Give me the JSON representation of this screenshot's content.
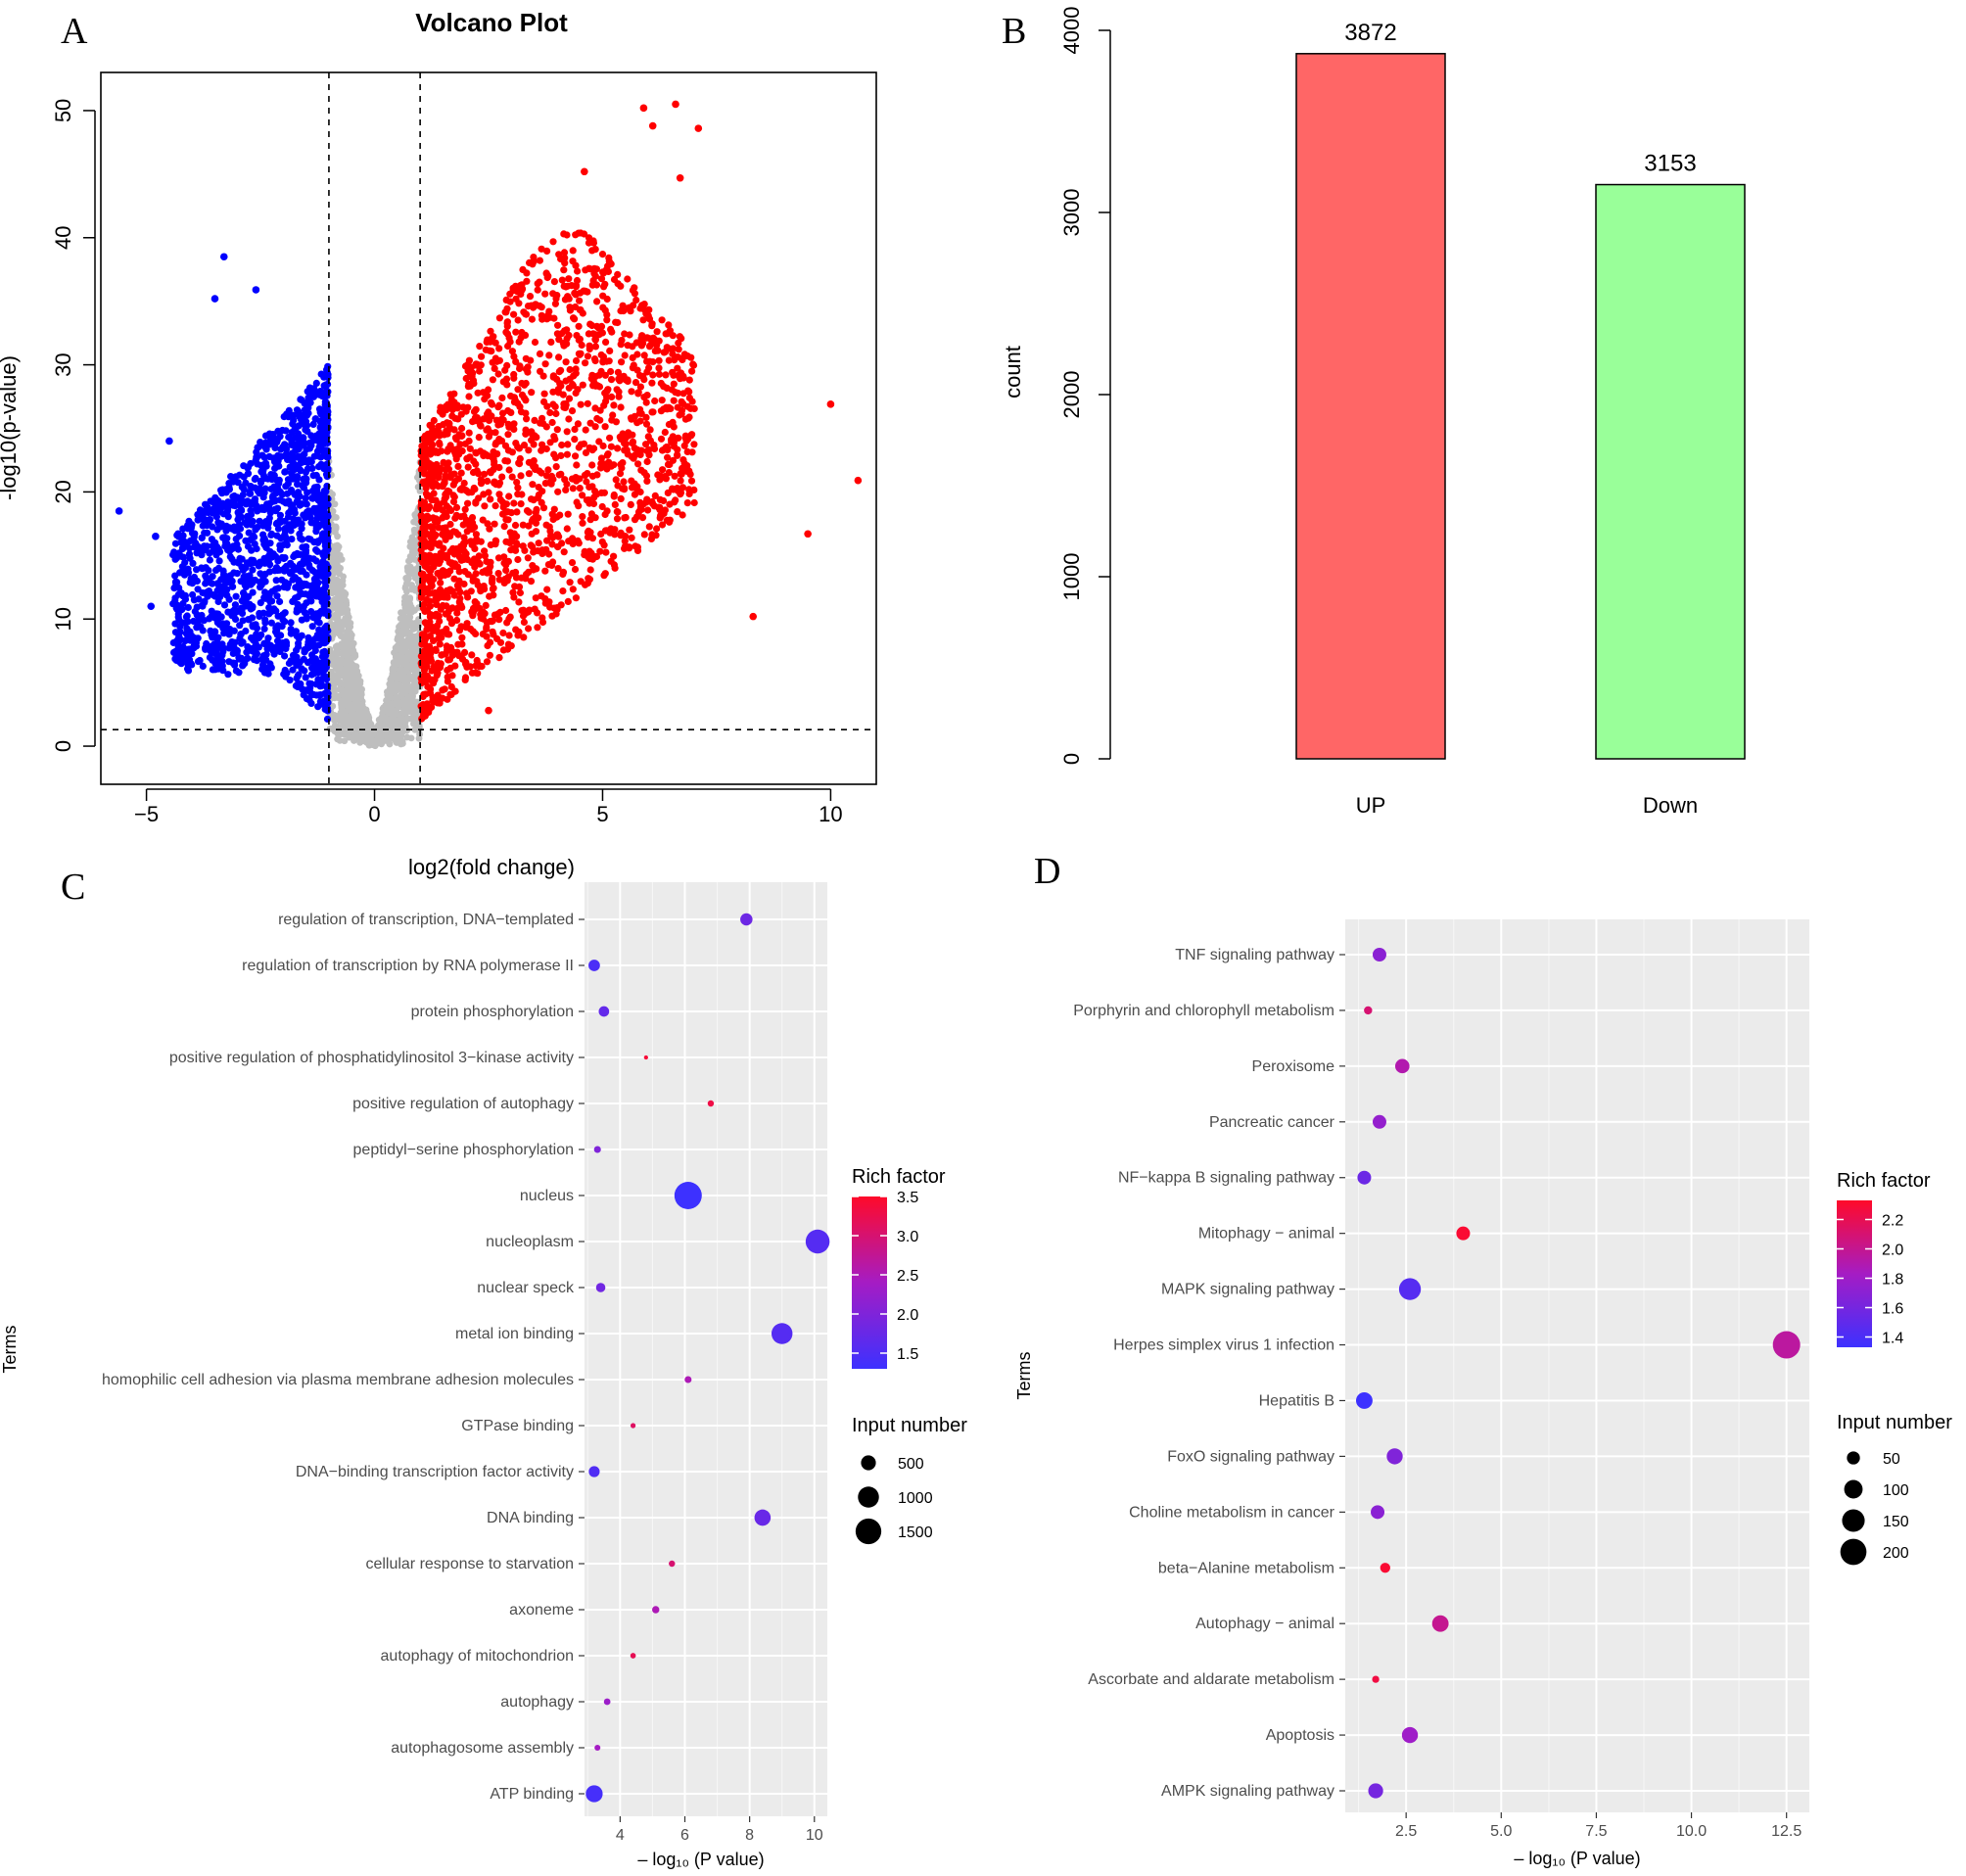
{
  "chart_data": [
    {
      "panel": "A",
      "type": "scatter",
      "title": "Volcano Plot",
      "xlabel": "log2(fold change)",
      "ylabel": "-log10(p-value)",
      "xlim": [
        -6,
        11
      ],
      "ylim": [
        -3,
        53
      ],
      "x_ticks": [
        -5,
        0,
        5,
        10
      ],
      "y_ticks": [
        0,
        10,
        20,
        30,
        40,
        50
      ],
      "thresholds": {
        "log2fc": [
          -1,
          1
        ],
        "neglog10p": 1.3
      },
      "colors": {
        "down": "#0000ff",
        "ns": "#bebebe",
        "up": "#ff0000"
      },
      "highlight_points": {
        "up": [
          [
            6.6,
            50.5
          ],
          [
            5.9,
            50.2
          ],
          [
            6.1,
            48.8
          ],
          [
            7.1,
            48.6
          ],
          [
            4.6,
            45.2
          ],
          [
            6.7,
            44.7
          ],
          [
            10.0,
            26.9
          ],
          [
            10.6,
            20.9
          ],
          [
            9.5,
            16.7
          ],
          [
            8.3,
            10.2
          ],
          [
            2.5,
            2.8
          ]
        ],
        "down": [
          [
            -5.6,
            18.5
          ],
          [
            -3.3,
            38.5
          ],
          [
            -2.6,
            35.9
          ],
          [
            -3.5,
            35.2
          ],
          [
            -4.5,
            24.0
          ],
          [
            -4.8,
            16.5
          ],
          [
            -4.9,
            11.0
          ],
          [
            -3.5,
            9.0
          ]
        ]
      }
    },
    {
      "panel": "B",
      "type": "bar",
      "categories": [
        "UP",
        "Down"
      ],
      "values": [
        3872,
        3153
      ],
      "data_labels": [
        "3872",
        "3153"
      ],
      "colors": [
        "#ff6666",
        "#99ff99"
      ],
      "title": "",
      "xlabel": "",
      "ylabel": "count",
      "ylim": [
        0,
        4000
      ],
      "y_ticks": [
        "0",
        "1000",
        "2000",
        "3000",
        "4000"
      ]
    },
    {
      "panel": "C",
      "type": "scatter",
      "title": "",
      "xlabel": "– log₁₀ (P value)",
      "ylabel": "Terms",
      "xlim": [
        2.9,
        10.4
      ],
      "x_ticks": [
        "4",
        "6",
        "8",
        "10"
      ],
      "legend": {
        "color_title": "Rich factor",
        "color_ticks": [
          "3.5",
          "3.0",
          "2.5",
          "2.0",
          "1.5"
        ],
        "color_range": [
          1.3,
          3.5
        ],
        "size_title": "Input number",
        "size_ticks": [
          "500",
          "1000",
          "1500"
        ]
      },
      "terms": [
        {
          "term": "regulation of transcription, DNA−templated",
          "p": 7.9,
          "rich": 1.8,
          "count": 340
        },
        {
          "term": "regulation of transcription by RNA polymerase II",
          "p": 3.2,
          "rich": 1.45,
          "count": 300
        },
        {
          "term": "protein phosphorylation",
          "p": 3.5,
          "rich": 1.7,
          "count": 250
        },
        {
          "term": "positive regulation of phosphatidylinositol 3−kinase activity",
          "p": 4.8,
          "rich": 3.4,
          "count": 40
        },
        {
          "term": "positive regulation of autophagy",
          "p": 6.8,
          "rich": 3.3,
          "count": 90
        },
        {
          "term": "peptidyl−serine phosphorylation",
          "p": 3.3,
          "rich": 2.0,
          "count": 110
        },
        {
          "term": "nucleus",
          "p": 6.1,
          "rich": 1.3,
          "count": 1700
        },
        {
          "term": "nucleoplasm",
          "p": 10.1,
          "rich": 1.55,
          "count": 1300
        },
        {
          "term": "nuclear speck",
          "p": 3.4,
          "rich": 1.85,
          "count": 200
        },
        {
          "term": "metal ion binding",
          "p": 9.0,
          "rich": 1.55,
          "count": 1000
        },
        {
          "term": "homophilic cell adhesion via plasma membrane adhesion molecules",
          "p": 6.1,
          "rich": 2.5,
          "count": 110
        },
        {
          "term": "GTPase binding",
          "p": 4.4,
          "rich": 3.1,
          "count": 60
        },
        {
          "term": "DNA−binding transcription factor activity",
          "p": 3.2,
          "rich": 1.5,
          "count": 270
        },
        {
          "term": "DNA binding",
          "p": 8.4,
          "rich": 1.75,
          "count": 600
        },
        {
          "term": "cellular response to starvation",
          "p": 5.6,
          "rich": 3.0,
          "count": 90
        },
        {
          "term": "axoneme",
          "p": 5.1,
          "rich": 2.5,
          "count": 120
        },
        {
          "term": "autophagy of mitochondrion",
          "p": 4.4,
          "rich": 3.2,
          "count": 70
        },
        {
          "term": "autophagy",
          "p": 3.6,
          "rich": 2.3,
          "count": 100
        },
        {
          "term": "autophagosome assembly",
          "p": 3.3,
          "rich": 2.4,
          "count": 80
        },
        {
          "term": "ATP binding",
          "p": 3.2,
          "rich": 1.4,
          "count": 650
        }
      ]
    },
    {
      "panel": "D",
      "type": "scatter",
      "title": "",
      "xlabel": "– log₁₀ (P value)",
      "ylabel": "Terms",
      "xlim": [
        0.9,
        13.1
      ],
      "x_ticks": [
        "2.5",
        "5.0",
        "7.5",
        "10.0",
        "12.5"
      ],
      "legend": {
        "color_title": "Rich factor",
        "color_ticks": [
          "2.2",
          "2.0",
          "1.8",
          "1.6",
          "1.4"
        ],
        "color_range": [
          1.33,
          2.33
        ],
        "size_title": "Input number",
        "size_ticks": [
          "50",
          "100",
          "150",
          "200"
        ]
      },
      "terms": [
        {
          "term": "TNF signaling pathway",
          "p": 1.8,
          "rich": 1.7,
          "count": 55
        },
        {
          "term": "Porphyrin and chlorophyll metabolism",
          "p": 1.5,
          "rich": 2.1,
          "count": 20
        },
        {
          "term": "Peroxisome",
          "p": 2.4,
          "rich": 1.9,
          "count": 60
        },
        {
          "term": "Pancreatic cancer",
          "p": 1.8,
          "rich": 1.75,
          "count": 55
        },
        {
          "term": "NF−kappa B signaling pathway",
          "p": 1.4,
          "rich": 1.55,
          "count": 55
        },
        {
          "term": "Mitophagy − animal",
          "p": 4.0,
          "rich": 2.3,
          "count": 55
        },
        {
          "term": "MAPK signaling pathway",
          "p": 2.6,
          "rich": 1.45,
          "count": 140
        },
        {
          "term": "Herpes simplex virus 1 infection",
          "p": 12.5,
          "rich": 1.95,
          "count": 220
        },
        {
          "term": "Hepatitis B",
          "p": 1.4,
          "rich": 1.33,
          "count": 80
        },
        {
          "term": "FoxO signaling pathway",
          "p": 2.2,
          "rich": 1.65,
          "count": 75
        },
        {
          "term": "Choline metabolism in cancer",
          "p": 1.75,
          "rich": 1.7,
          "count": 55
        },
        {
          "term": "beta−Alanine metabolism",
          "p": 1.95,
          "rich": 2.3,
          "count": 30
        },
        {
          "term": "Autophagy − animal",
          "p": 3.4,
          "rich": 2.0,
          "count": 80
        },
        {
          "term": "Ascorbate and aldarate metabolism",
          "p": 1.7,
          "rich": 2.25,
          "count": 15
        },
        {
          "term": "Apoptosis",
          "p": 2.6,
          "rich": 1.8,
          "count": 75
        },
        {
          "term": "AMPK signaling pathway",
          "p": 1.7,
          "rich": 1.6,
          "count": 65
        }
      ]
    }
  ],
  "panels": [
    "A",
    "B",
    "C",
    "D"
  ]
}
